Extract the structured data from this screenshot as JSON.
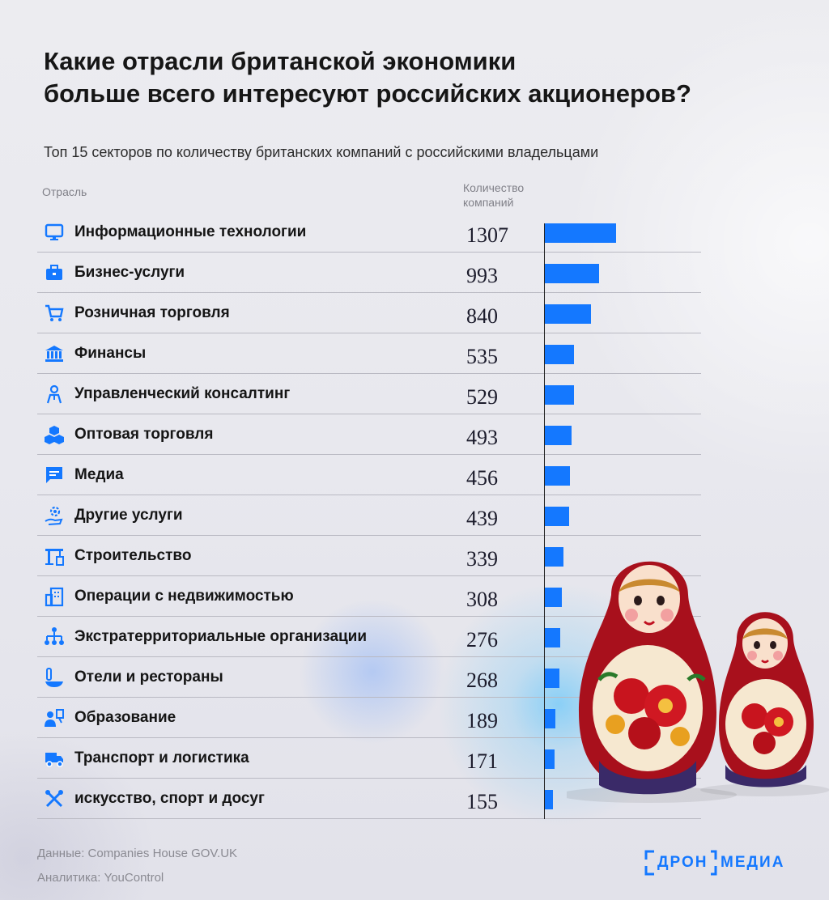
{
  "title_line1": "Какие отрасли британской экономики",
  "title_line2": "больше всего интересуют российских акционеров?",
  "subtitle": "Топ 15 секторов по количеству британских компаний с российскими владельцами",
  "col_industry": "Отрасль",
  "col_count_line1": "Количество",
  "col_count_line2": "компаний",
  "accent_color": "#1478ff",
  "chart_data": {
    "type": "bar",
    "orientation": "horizontal",
    "categories": [
      "Информационные технологии",
      "Бизнес-услуги",
      "Розничная торговля",
      "Финансы",
      "Управленческий консалтинг",
      "Оптовая торговля",
      "Медиа",
      "Другие услуги",
      "Строительство",
      "Операции с недвижимостью",
      "Экстратерриториальные организации",
      "Отели и рестораны",
      "Образование",
      "Транспорт и логистика",
      "искусство, спорт и досуг"
    ],
    "values": [
      1307,
      993,
      840,
      535,
      529,
      493,
      456,
      439,
      339,
      308,
      276,
      268,
      189,
      171,
      155
    ],
    "value_labels": [
      "1307",
      "993",
      "840",
      "535",
      "529",
      "493",
      "456",
      "439",
      "339",
      "308",
      "276",
      "268",
      "189",
      "171",
      "155"
    ],
    "icons": [
      "monitor-icon",
      "briefcase-icon",
      "shopping-cart-icon",
      "bank-icon",
      "consultant-icon",
      "boxes-icon",
      "chat-icon",
      "gear-hand-icon",
      "crane-icon",
      "buildings-icon",
      "org-chart-icon",
      "dining-icon",
      "teacher-icon",
      "truck-icon",
      "sports-icon"
    ],
    "bar_color": "#1478ff"
  },
  "footer": {
    "source": "Данные: Companies House GOV.UK",
    "analytics": "Аналитика: YouControl"
  },
  "logo": {
    "part1": "ДРОН",
    "part2": "МЕДИА"
  }
}
